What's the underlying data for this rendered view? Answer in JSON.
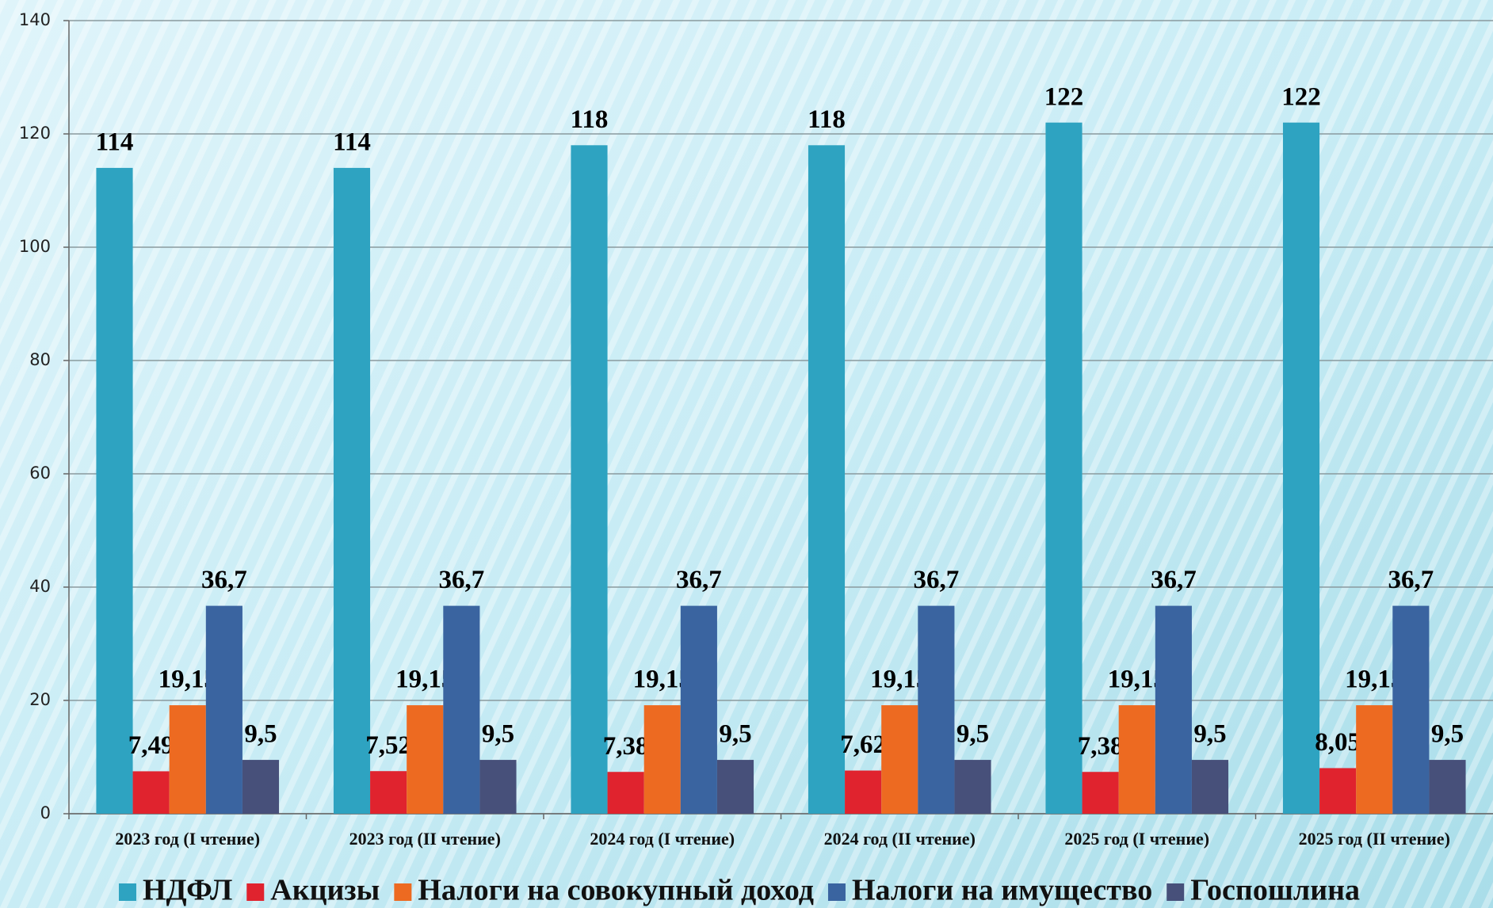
{
  "chart_data": {
    "type": "bar",
    "categories": [
      "2023 год (I чтение)",
      "2023 год (II чтение)",
      "2024 год (I чтение)",
      "2024 год (II чтение)",
      "2025 год (I чтение)",
      "2025 год (II чтение)"
    ],
    "series": [
      {
        "name": "НДФЛ",
        "color": "#2ea3c1",
        "values": [
          114,
          114,
          118,
          118,
          122,
          122
        ]
      },
      {
        "name": "Акцизы",
        "color": "#e0232e",
        "values": [
          7.49,
          7.52,
          7.38,
          7.62,
          7.38,
          8.05
        ],
        "value_labels": [
          "7,49",
          "7,52",
          "7,38",
          "7,62",
          "7,38",
          "8,05"
        ]
      },
      {
        "name": "Налоги на совокупный доход",
        "color": "#ed6a21",
        "values": [
          19.15,
          19.15,
          19.15,
          19.15,
          19.15,
          19.15
        ],
        "value_labels": [
          "19,15",
          "19,15",
          "19,15",
          "19,15",
          "19,15",
          "19,15"
        ]
      },
      {
        "name": "Налоги на имущество",
        "color": "#3a64a0",
        "values": [
          36.7,
          36.7,
          36.7,
          36.7,
          36.7,
          36.7
        ],
        "value_labels": [
          "36,7",
          "36,7",
          "36,7",
          "36,7",
          "36,7",
          "36,7"
        ]
      },
      {
        "name": "Госпошлина",
        "color": "#47507a",
        "values": [
          9.5,
          9.5,
          9.5,
          9.5,
          9.5,
          9.5
        ],
        "value_labels": [
          "9,5",
          "9,5",
          "9,5",
          "9,5",
          "9,5",
          "9,5"
        ]
      }
    ],
    "ylim": [
      0,
      140
    ],
    "yticks": [
      0,
      20,
      40,
      60,
      80,
      100,
      120,
      140
    ],
    "grid": true,
    "legend": "bottom"
  }
}
